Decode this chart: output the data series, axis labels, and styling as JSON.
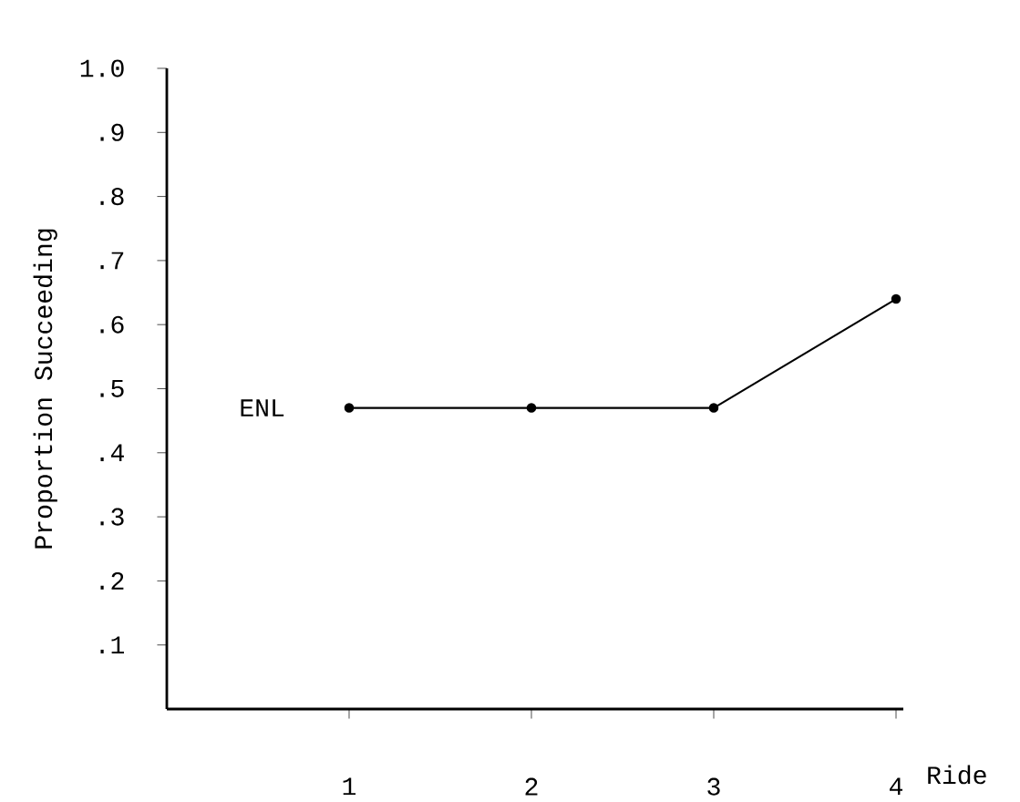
{
  "chart_data": {
    "type": "line",
    "xlabel": "Ride",
    "ylabel": "Proportion Succeeding",
    "x": [
      1,
      2,
      3,
      4
    ],
    "series": [
      {
        "name": "ENL",
        "color": "#000000",
        "values": [
          0.47,
          0.47,
          0.47,
          0.64
        ]
      }
    ],
    "xlim": [
      0,
      4.04
    ],
    "xticks": [
      1,
      2,
      3,
      4
    ],
    "ylim": [
      0,
      1.0
    ],
    "yticks": [
      {
        "value": 0.1,
        "label": ".1"
      },
      {
        "value": 0.2,
        "label": ".2"
      },
      {
        "value": 0.3,
        "label": ".3"
      },
      {
        "value": 0.4,
        "label": ".4"
      },
      {
        "value": 0.5,
        "label": ".5"
      },
      {
        "value": 0.6,
        "label": ".6"
      },
      {
        "value": 0.7,
        "label": ".7"
      },
      {
        "value": 0.8,
        "label": ".8"
      },
      {
        "value": 0.9,
        "label": ".9"
      },
      {
        "value": 1.0,
        "label": "1.0"
      }
    ],
    "marker": "circle",
    "line_style": "solid",
    "grid": false
  }
}
